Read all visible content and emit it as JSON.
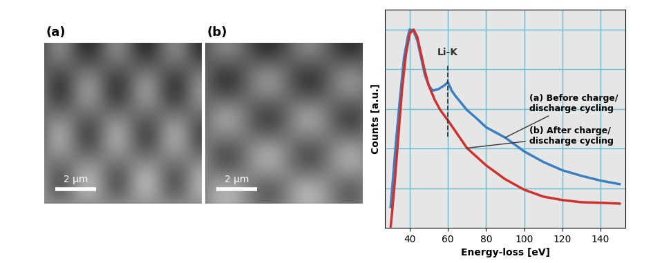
{
  "panels": [
    {
      "label": "(a)",
      "scale_bar": "2 µm"
    },
    {
      "label": "(b)",
      "scale_bar": "2 µm"
    }
  ],
  "chart_data": {
    "type": "line",
    "x_label": "Energy-loss [eV]",
    "y_label": "Counts [a.u.]",
    "xlim": [
      27,
      153
    ],
    "xticks": [
      40,
      60,
      80,
      100,
      120,
      140
    ],
    "ylim": [
      0,
      1.1
    ],
    "yticks": [
      0.2,
      0.4,
      0.6,
      0.8,
      1.0
    ],
    "grid": true,
    "tick_labels": "x",
    "annotations": [
      {
        "text": "Li-K",
        "x": 60
      }
    ],
    "series": [
      {
        "name": "(a) Before charge/\ndischarge cycling",
        "color": "#3a7fc1",
        "x": [
          30,
          33,
          35,
          37,
          39,
          40,
          42,
          44,
          46,
          48,
          50,
          52,
          55,
          58,
          60,
          62,
          64,
          67,
          70,
          75,
          80,
          90,
          100,
          110,
          120,
          130,
          140,
          150
        ],
        "values": [
          0.105,
          0.455,
          0.664,
          0.857,
          0.962,
          1.0,
          0.993,
          0.944,
          0.857,
          0.769,
          0.717,
          0.692,
          0.699,
          0.717,
          0.734,
          0.692,
          0.664,
          0.629,
          0.594,
          0.552,
          0.507,
          0.455,
          0.385,
          0.332,
          0.29,
          0.262,
          0.238,
          0.22
        ]
      },
      {
        "name": "(b) After charge/\ndischarge cycling",
        "color": "#d0312d",
        "x": [
          30,
          32,
          34,
          36,
          38,
          40,
          42,
          44,
          46,
          48,
          50,
          53,
          56,
          60,
          65,
          70,
          80,
          90,
          100,
          110,
          120,
          130,
          140,
          150
        ],
        "values": [
          0.0,
          0.21,
          0.455,
          0.699,
          0.874,
          0.979,
          1.0,
          0.962,
          0.874,
          0.787,
          0.717,
          0.647,
          0.594,
          0.542,
          0.472,
          0.402,
          0.315,
          0.245,
          0.192,
          0.157,
          0.14,
          0.129,
          0.126,
          0.122
        ]
      }
    ]
  }
}
